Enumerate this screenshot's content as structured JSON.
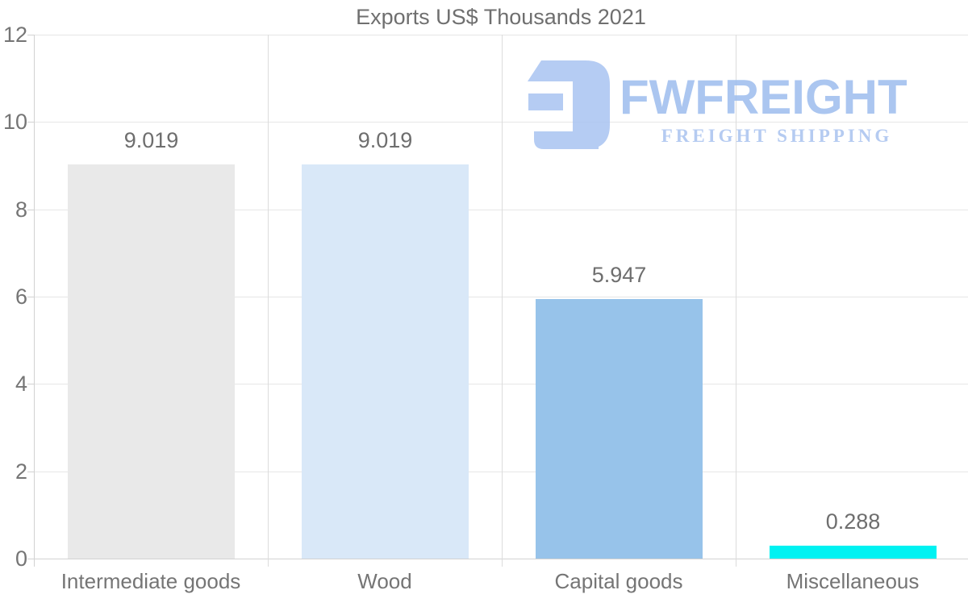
{
  "chart_data": {
    "type": "bar",
    "title": "Exports US$ Thousands 2021",
    "categories": [
      "Intermediate goods",
      "Wood",
      "Capital goods",
      "Miscellaneous"
    ],
    "values": [
      9.019,
      9.019,
      5.947,
      0.288
    ],
    "value_labels": [
      "9.019",
      "9.019",
      "5.947",
      "0.288"
    ],
    "bar_colors": [
      "#e9e9e9",
      "#d9e8f8",
      "#97c3ea",
      "#00f2f2"
    ],
    "xlabel": "",
    "ylabel": "",
    "ylim": [
      0,
      12
    ],
    "yticks": [
      0,
      2,
      4,
      6,
      8,
      10,
      12
    ],
    "grid": true,
    "legend": false,
    "bar_width_fraction": 0.715
  },
  "watermark": {
    "brand": "FWFREIGHT",
    "tagline": "FREIGHT SHIPPING",
    "brand_color": "#9dbdee",
    "tagline_color": "#a9c2ef",
    "icon_color": "#a9c4f1",
    "icon": "fwfreight-logo-icon"
  },
  "style_colors": {
    "background": "#ffffff",
    "title_text": "#6f6f6f",
    "axis_text": "#757575",
    "gridline": "#e6e6e6",
    "axis_line": "#d2d2d2"
  }
}
